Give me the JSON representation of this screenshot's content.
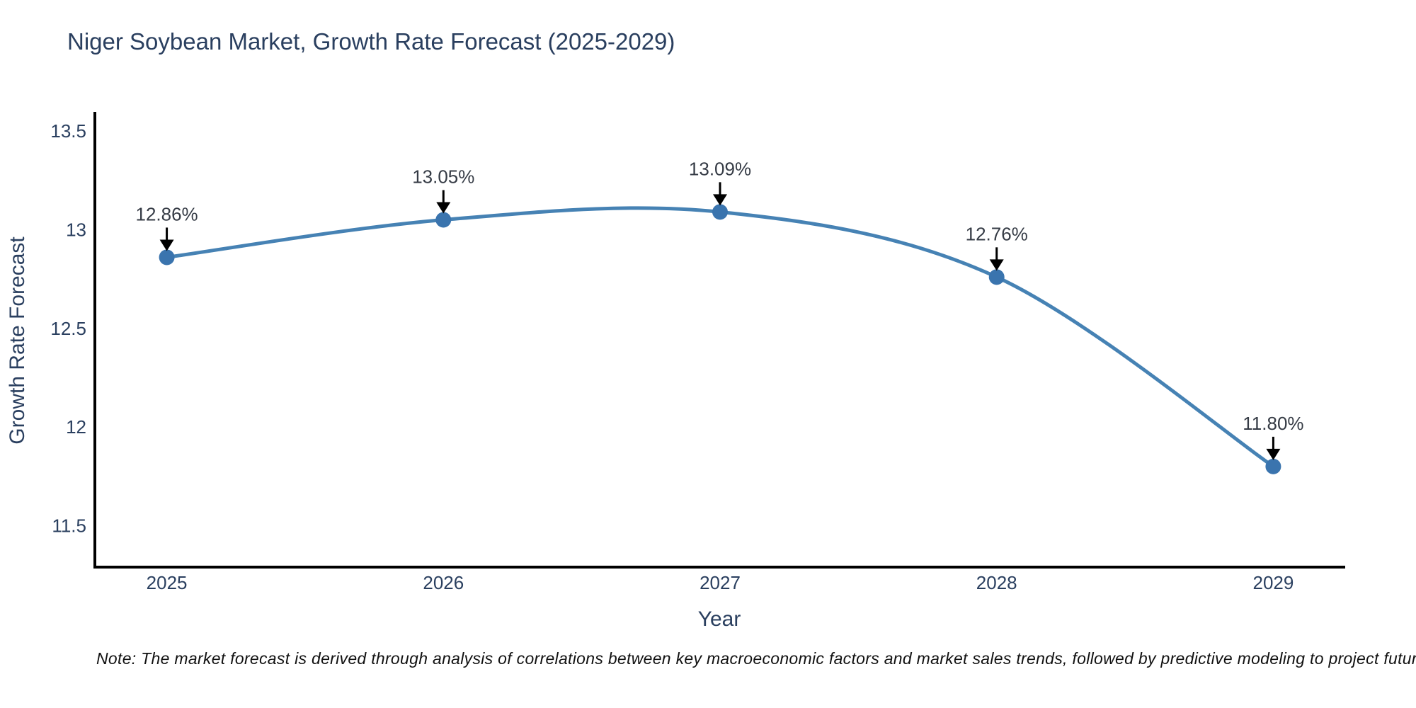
{
  "header": {
    "title": "Niger Soybean Market, Growth Rate Forecast (2025-2029)"
  },
  "footnote": {
    "text": "Note: The market forecast is derived through analysis of correlations between key macroeconomic factors and market sales trends, followed by predictive modeling to project future sal"
  },
  "chart_data": {
    "type": "line",
    "title": "Niger Soybean Market, Growth Rate Forecast (2025-2029)",
    "xlabel": "Year",
    "ylabel": "Growth Rate Forecast",
    "x": [
      2025,
      2026,
      2027,
      2028,
      2029
    ],
    "y": [
      12.86,
      13.05,
      13.09,
      12.76,
      11.8
    ],
    "point_labels": [
      "12.86%",
      "13.05%",
      "13.09%",
      "12.76%",
      "11.80%"
    ],
    "x_tick_labels": [
      "2025",
      "2026",
      "2027",
      "2028",
      "2029"
    ],
    "y_ticks": [
      11.5,
      12,
      12.5,
      13,
      13.5
    ],
    "y_tick_labels": [
      "11.5",
      "12",
      "12.5",
      "13",
      "13.5"
    ],
    "xlim": [
      2024.74,
      2029.26
    ],
    "ylim": [
      11.29,
      13.59
    ],
    "grid": false,
    "line_shape": "spline",
    "legend": "none",
    "colors": {
      "line": "#4682b4",
      "marker": "#3a74ae",
      "axis": "#000000",
      "tick_text": "#2a3f5f",
      "title_text": "#2a3f5f",
      "annotation_text": "#353b45",
      "arrow": "#000000",
      "note_text": "#111111",
      "background": "#ffffff"
    }
  }
}
